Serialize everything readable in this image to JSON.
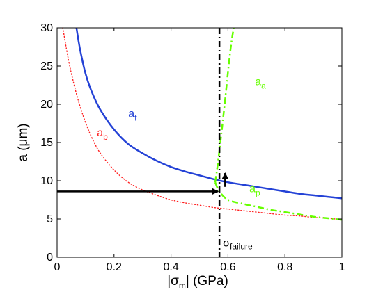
{
  "chart_data": {
    "type": "line",
    "title": "",
    "xlabel": {
      "pre": "|σ",
      "sub": "m",
      "post": "| (GPa)"
    },
    "ylabel": "a (μm)",
    "xlim": [
      0,
      1
    ],
    "ylim": [
      0,
      30
    ],
    "xticks": [
      "0",
      "0.2",
      "0.4",
      "0.6",
      "0.8",
      "1"
    ],
    "yticks": [
      "0",
      "5",
      "10",
      "15",
      "20",
      "25",
      "30"
    ],
    "grid": false,
    "colors": {
      "a_f": "#2442d6",
      "a_b": "#ff2020",
      "a_a": "#66ff00",
      "a_p": "#66ff00",
      "failure": "#000000",
      "arrow": "#000000"
    },
    "series": [
      {
        "name": "a_f",
        "label_main": "a",
        "label_sub": "f",
        "style": "solid",
        "x": [
          0.068,
          0.08,
          0.1,
          0.12,
          0.15,
          0.2,
          0.25,
          0.3,
          0.35,
          0.4,
          0.45,
          0.5,
          0.55,
          0.6,
          0.65,
          0.7,
          0.75,
          0.8,
          0.85,
          0.9,
          0.95,
          1.0
        ],
        "y": [
          30.0,
          27.3,
          24.0,
          21.8,
          19.4,
          16.7,
          14.8,
          13.6,
          12.6,
          11.8,
          11.2,
          10.7,
          10.2,
          9.8,
          9.5,
          9.2,
          8.9,
          8.6,
          8.3,
          8.1,
          7.9,
          7.7
        ]
      },
      {
        "name": "a_b",
        "label_main": "a",
        "label_sub": "b",
        "style": "dotted",
        "x": [
          0.02,
          0.04,
          0.06,
          0.08,
          0.1,
          0.12,
          0.15,
          0.2,
          0.25,
          0.3,
          0.35,
          0.4,
          0.45,
          0.5,
          0.55,
          0.6,
          0.65,
          0.7,
          0.75,
          0.8,
          0.85,
          0.9,
          0.95,
          1.0
        ],
        "y": [
          30.0,
          25.8,
          22.5,
          19.8,
          17.6,
          15.8,
          13.7,
          11.4,
          9.8,
          8.8,
          8.1,
          7.5,
          7.1,
          6.8,
          6.5,
          6.3,
          6.1,
          5.9,
          5.7,
          5.5,
          5.4,
          5.2,
          5.1,
          4.9
        ]
      },
      {
        "name": "a_a",
        "label_main": "a",
        "label_sub": "a",
        "style": "dashdot",
        "x": [
          0.555,
          0.56,
          0.57,
          0.58,
          0.59,
          0.6,
          0.61,
          0.62
        ],
        "y": [
          9.8,
          11.0,
          14.0,
          17.2,
          20.6,
          24.2,
          27.5,
          30.0
        ]
      },
      {
        "name": "a_p",
        "label_main": "a",
        "label_sub": "p",
        "style": "dashdot",
        "x": [
          0.555,
          0.57,
          0.6,
          0.65,
          0.7,
          0.75,
          0.8,
          0.85,
          0.9,
          0.95,
          1.0
        ],
        "y": [
          9.8,
          8.6,
          7.5,
          7.0,
          6.6,
          6.2,
          5.9,
          5.6,
          5.3,
          5.1,
          4.9
        ]
      }
    ],
    "vertical_line": {
      "x": 0.57,
      "label_main": "σ",
      "label_sub": "failure"
    },
    "arrows": [
      {
        "from": [
          0.0,
          8.6
        ],
        "to": [
          0.565,
          8.6
        ]
      },
      {
        "from": [
          0.59,
          9.2
        ],
        "to": [
          0.59,
          11.0
        ]
      }
    ],
    "curve_labels": [
      {
        "series": "a_f",
        "x": 0.25,
        "y": 18.3
      },
      {
        "series": "a_b",
        "x": 0.14,
        "y": 15.8
      },
      {
        "series": "a_a",
        "x": 0.695,
        "y": 22.5
      },
      {
        "series": "a_p",
        "x": 0.675,
        "y": 8.5
      }
    ]
  }
}
